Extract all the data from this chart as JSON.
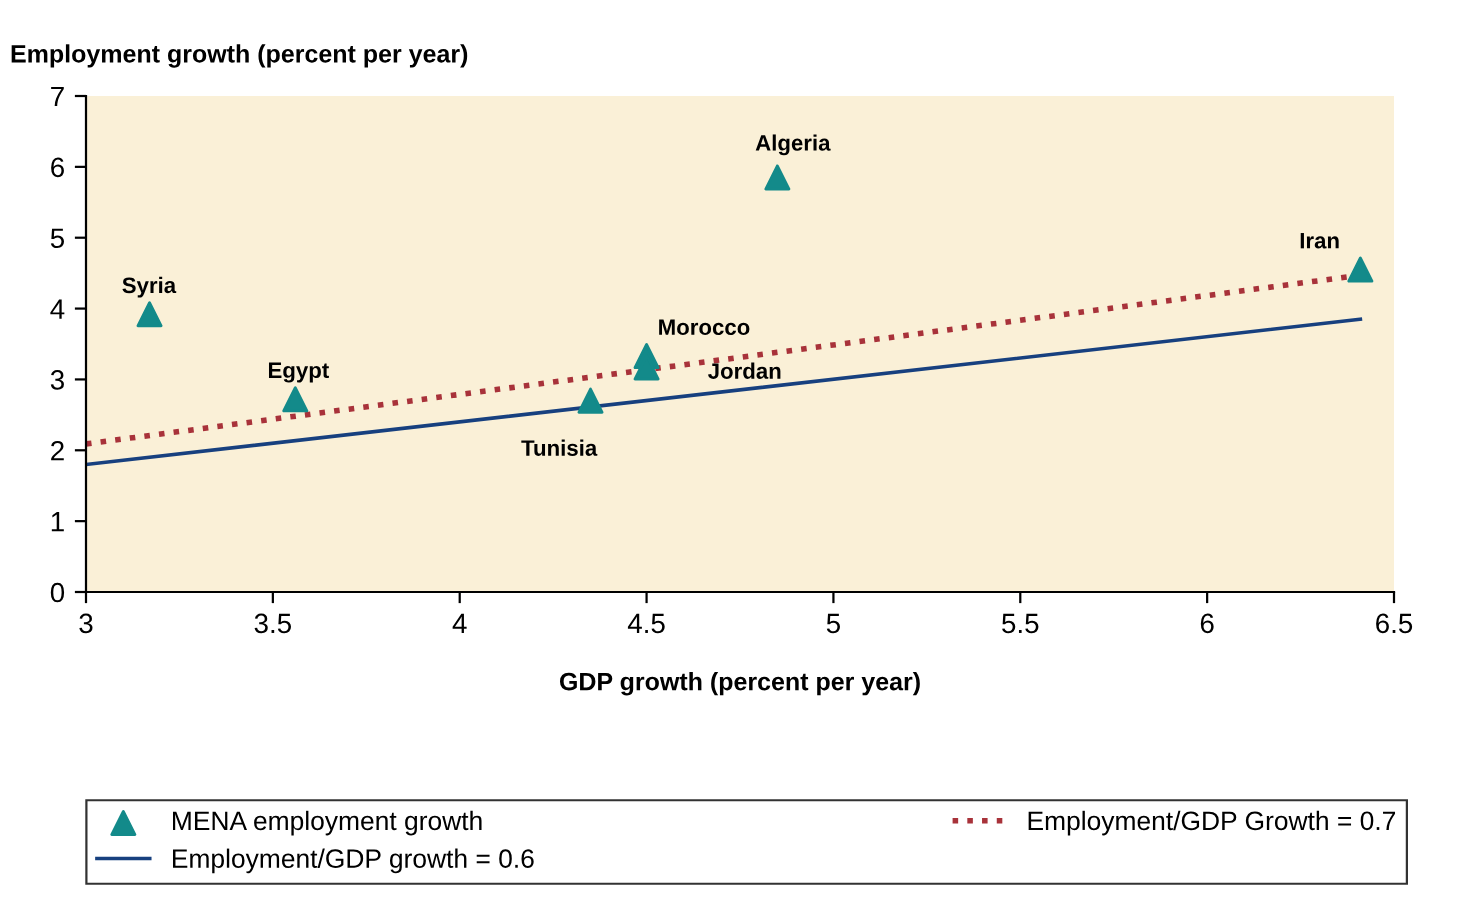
{
  "chart_data": {
    "type": "scatter",
    "xlabel": "GDP growth (percent per year)",
    "ylabel": "Employment growth (percent per year)",
    "series": [
      {
        "name": "MENA employment growth",
        "color": "#138a8a",
        "marker": "triangle",
        "x": [
          3.17,
          3.56,
          4.35,
          4.5,
          4.5,
          4.85,
          6.41
        ],
        "values": [
          3.92,
          2.72,
          2.7,
          3.33,
          3.17,
          5.85,
          4.55
        ]
      },
      {
        "name": "Employment/GDP Growth = 0.7",
        "type": "line",
        "color": "#a8323a",
        "line_style": "dotted",
        "x": [
          3,
          6.38
        ],
        "values": [
          2.09,
          4.45
        ]
      },
      {
        "name": "Employment/GDP growth = 0.6",
        "type": "line",
        "color": "#17407f",
        "line_style": "solid",
        "x": [
          3,
          6.41
        ],
        "values": [
          1.8,
          3.85
        ]
      }
    ],
    "annotations": [
      {
        "text": "Syria",
        "x": 3.17,
        "y": 3.92
      },
      {
        "text": "Egypt",
        "x": 3.56,
        "y": 2.72
      },
      {
        "text": "Tunisia",
        "x": 4.35,
        "y": 2.7
      },
      {
        "text": "Morocco",
        "x": 4.5,
        "y": 3.33
      },
      {
        "text": "Jordan",
        "x": 4.5,
        "y": 3.17
      },
      {
        "text": "Algeria",
        "x": 4.85,
        "y": 5.85
      },
      {
        "text": "Iran",
        "x": 6.41,
        "y": 4.55
      }
    ],
    "xlim": [
      3,
      6.5
    ],
    "xticks": [
      3,
      3.5,
      4,
      4.5,
      5,
      5.5,
      6,
      6.5
    ],
    "ylim": [
      0,
      7
    ],
    "yticks": [
      0,
      1,
      2,
      3,
      4,
      5,
      6,
      7
    ],
    "grid": false,
    "legend": "bottom"
  }
}
